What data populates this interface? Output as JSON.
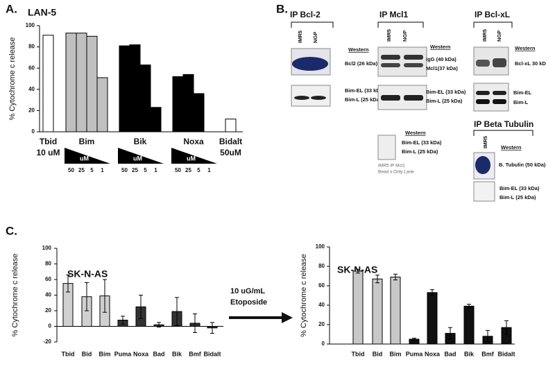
{
  "panel_labels": [
    "A.",
    "B.",
    "C."
  ],
  "chart_data": [
    {
      "type": "bar",
      "title": "LAN-5",
      "y_label": "% Cytochrome c release",
      "ylim": [
        0,
        100
      ],
      "yticks": [
        0,
        20,
        40,
        60,
        80,
        100
      ],
      "groups": [
        {
          "name": "Tbid",
          "sublabel": "10 uM",
          "color": "#ffffff",
          "values": [
            91
          ]
        },
        {
          "name": "Bim",
          "color": "#c0c0c0",
          "values": [
            93,
            93,
            90,
            51
          ]
        },
        {
          "name": "Bik",
          "color": "#000000",
          "values": [
            81,
            82,
            63,
            23
          ]
        },
        {
          "name": "Noxa",
          "color": "#000000",
          "values": [
            52,
            54,
            36
          ]
        },
        {
          "name": "Bidalt",
          "sublabel": "50uM",
          "color": "#ffffff",
          "values": [
            12
          ]
        }
      ],
      "dose_unit": "uM",
      "doses": [
        50,
        25,
        5,
        1
      ]
    },
    {
      "type": "bar",
      "title": "SK-N-AS",
      "y_label": "% Cytochrome c release",
      "ylim": [
        -20,
        100
      ],
      "yticks": [
        -20,
        0,
        20,
        40,
        60,
        80,
        100
      ],
      "categories": [
        "Tbid",
        "Bid",
        "Bim",
        "Puma",
        "Noxa",
        "Bad",
        "Bik",
        "Bmf",
        "Bidalt"
      ],
      "values": [
        55,
        38,
        39,
        8,
        25,
        2,
        19,
        4,
        -2
      ],
      "errors": [
        11,
        18,
        21,
        5,
        15,
        3,
        18,
        12,
        7
      ],
      "colors": [
        "#d0d0d0",
        "#d0d0d0",
        "#d0d0d0",
        "#333333",
        "#333333",
        "#333333",
        "#333333",
        "#333333",
        "#333333"
      ]
    },
    {
      "type": "bar",
      "title": "SK-N-AS",
      "y_label": "% Cytochrome c release",
      "ylim": [
        0,
        100
      ],
      "yticks": [
        0,
        20,
        40,
        60,
        80,
        100
      ],
      "categories": [
        "Tbid",
        "Bid",
        "Bim",
        "Puma",
        "Noxa",
        "Bad",
        "Bik",
        "Bmf",
        "Bidalt"
      ],
      "values": [
        75,
        67,
        69,
        5,
        53,
        11,
        39,
        8,
        17
      ],
      "errors": [
        2,
        4,
        3,
        1,
        3,
        6,
        2,
        6,
        7
      ],
      "colors": [
        "#c8c8c8",
        "#c8c8c8",
        "#c8c8c8",
        "#111111",
        "#111111",
        "#111111",
        "#111111",
        "#111111",
        "#111111"
      ]
    }
  ],
  "treatment": [
    "10 uG/mL",
    "Etoposide"
  ],
  "panel_b": {
    "bcl2": {
      "title": "IP Bcl-2",
      "lanes": [
        "IMR5",
        "NGP"
      ],
      "western": "Western",
      "labels": [
        "Bcl2 (26 kDa)",
        "Bim-EL (33 kDa)",
        "Bim-L (25 kDa)"
      ]
    },
    "mcl1": {
      "title": "IP Mcl1",
      "lanes": [
        "IMR5",
        "NGP"
      ],
      "western": "Western",
      "labels": [
        "IgG (40 kDa)",
        "Mcl1(37 kDa)",
        "Bim-EL (33 kDa)",
        "Bim-L (25 kDa)"
      ]
    },
    "beads": {
      "western": "Western",
      "labels": [
        "Bim-EL (33 kDa)",
        "Bim-L (25 kDa)"
      ],
      "caption": [
        "IMR5 IP Mcl1",
        "Bead s Only Lane"
      ]
    },
    "bclxl": {
      "title": "IP Bcl-xL",
      "lanes": [
        "IMR5",
        "NGP"
      ],
      "western": "Western",
      "labels": [
        "Bcl-xL 30 kD",
        "Bim-EL",
        "Bim-L"
      ]
    },
    "tubulin": {
      "title": "IP Beta Tubulin",
      "lanes": [
        "IMR5"
      ],
      "western": "Western",
      "labels": [
        "B. Tubulin (50 kDa)",
        "Bim-EL (33 kDa)",
        "Bim-L (25 kDa)"
      ]
    }
  }
}
